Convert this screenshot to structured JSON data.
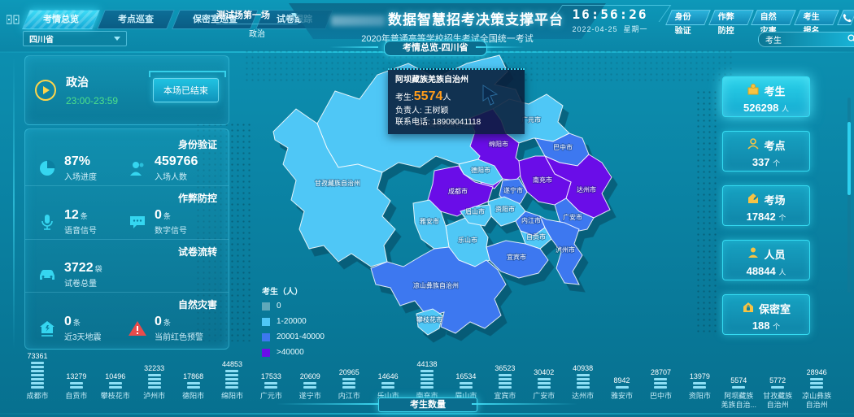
{
  "header": {
    "tabs": [
      {
        "label": "考情总览",
        "active": true
      },
      {
        "label": "考点巡查",
        "active": false
      },
      {
        "label": "保密室巡查",
        "active": false
      },
      {
        "label": "试卷跟踪",
        "active": false
      }
    ],
    "session_select": {
      "value": "测试场第一场",
      "subject": "政治"
    },
    "title": "数据智慧招考决策支撑平台",
    "subtitle": "2020年普通高等学校招生考试全国统一考试",
    "breadcrumb": "考情总览-四川省",
    "clock": {
      "time": "16:56:26",
      "date": "2022-04-25",
      "weekday": "星期一"
    },
    "actions": [
      "身份验证",
      "作弊防控",
      "自然灾害",
      "考生报名"
    ],
    "search": {
      "value": "考生"
    }
  },
  "filters": {
    "province": "四川省"
  },
  "left_panel": {
    "session": {
      "subject": "政治",
      "time_range": "23:00-23:59",
      "status_button": "本场已结束"
    },
    "sections": [
      {
        "title": "身份验证",
        "stats": [
          {
            "icon": "pie-chart-icon",
            "value": "87%",
            "unit": "",
            "label": "入场进度"
          },
          {
            "icon": "person-icon",
            "value": "459766",
            "unit": "",
            "label": "入场人数"
          }
        ]
      },
      {
        "title": "作弊防控",
        "stats": [
          {
            "icon": "microphone-icon",
            "value": "12",
            "unit": "条",
            "label": "语音信号"
          },
          {
            "icon": "chat-icon",
            "value": "0",
            "unit": "条",
            "label": "数字信号"
          }
        ]
      },
      {
        "title": "试卷流转",
        "stats": [
          {
            "icon": "car-icon",
            "value": "3722",
            "unit": "袋",
            "label": "试卷总量"
          }
        ]
      },
      {
        "title": "自然灾害",
        "stats": [
          {
            "icon": "earthquake-icon",
            "value": "0",
            "unit": "条",
            "label": "近3天地震"
          },
          {
            "icon": "alert-icon",
            "value": "0",
            "unit": "条",
            "label": "当前红色预警"
          }
        ]
      }
    ]
  },
  "map": {
    "tooltip": {
      "region": "阿坝藏族羌族自治州",
      "stat_label": "考生:",
      "stat_value": "5574",
      "stat_unit": "人",
      "manager": "负责人: 王树颖",
      "phone": "联系电话: 18909041118"
    },
    "legend": {
      "title": "考生（人）",
      "items": [
        {
          "label": "0",
          "color": "#5fa8ba"
        },
        {
          "label": "1-20000",
          "color": "#4fc7f6"
        },
        {
          "label": "20001-40000",
          "color": "#3d78f0"
        },
        {
          "label": ">40000",
          "color": "#6a0de8"
        }
      ]
    },
    "regions": [
      {
        "name": "阿坝藏族羌族自治州",
        "band": "1-20000"
      },
      {
        "name": "甘孜藏族自治州",
        "band": "1-20000"
      },
      {
        "name": "广元市",
        "band": "1-20000"
      },
      {
        "name": "绵阳市",
        "band": ">40000"
      },
      {
        "name": "巴中市",
        "band": "20001-40000"
      },
      {
        "name": "达州市",
        "band": ">40000"
      },
      {
        "name": "南充市",
        "band": ">40000"
      },
      {
        "name": "广安市",
        "band": "20001-40000"
      },
      {
        "name": "遂宁市",
        "band": "20001-40000"
      },
      {
        "name": "德阳市",
        "band": "1-20000"
      },
      {
        "name": "成都市",
        "band": ">40000"
      },
      {
        "name": "资阳市",
        "band": "1-20000"
      },
      {
        "name": "内江市",
        "band": "20001-40000"
      },
      {
        "name": "自贡市",
        "band": "1-20000"
      },
      {
        "name": "泸州市",
        "band": "20001-40000"
      },
      {
        "name": "宜宾市",
        "band": "20001-40000"
      },
      {
        "name": "乐山市",
        "band": "1-20000"
      },
      {
        "name": "眉山市",
        "band": "1-20000"
      },
      {
        "name": "雅安市",
        "band": "1-20000"
      },
      {
        "name": "凉山彝族自治州",
        "band": "20001-40000"
      },
      {
        "name": "攀枝花市",
        "band": "1-20000"
      }
    ]
  },
  "right_panel": {
    "cards": [
      {
        "icon": "candidate-icon",
        "label": "考生",
        "value": "526298",
        "unit": "人",
        "active": true
      },
      {
        "icon": "site-icon",
        "label": "考点",
        "value": "337",
        "unit": "个",
        "active": false
      },
      {
        "icon": "room-icon",
        "label": "考场",
        "value": "17842",
        "unit": "个",
        "active": false
      },
      {
        "icon": "staff-icon",
        "label": "人员",
        "value": "48844",
        "unit": "人",
        "active": false
      },
      {
        "icon": "secret-room-icon",
        "label": "保密室",
        "value": "188",
        "unit": "个",
        "active": false
      }
    ]
  },
  "chart_data": {
    "type": "bar",
    "title": "考生数量",
    "categories": [
      "成都市",
      "自贡市",
      "攀枝花市",
      "泸州市",
      "德阳市",
      "绵阳市",
      "广元市",
      "遂宁市",
      "内江市",
      "乐山市",
      "南充市",
      "眉山市",
      "宜宾市",
      "广安市",
      "达州市",
      "雅安市",
      "巴中市",
      "资阳市",
      "阿坝藏族羌族自治州",
      "甘孜藏族自治州",
      "凉山彝族自治州"
    ],
    "values": [
      73361,
      13279,
      10496,
      32233,
      17868,
      44853,
      17533,
      20609,
      20965,
      14646,
      44138,
      16534,
      36523,
      30402,
      40938,
      8942,
      28707,
      13979,
      5574,
      5772,
      28946
    ],
    "tick_lines": [
      [
        "成都市"
      ],
      [
        "自贡市"
      ],
      [
        "攀枝花市"
      ],
      [
        "泸州市"
      ],
      [
        "德阳市"
      ],
      [
        "绵阳市"
      ],
      [
        "广元市"
      ],
      [
        "遂宁市"
      ],
      [
        "内江市"
      ],
      [
        "乐山市"
      ],
      [
        "南充市"
      ],
      [
        "眉山市"
      ],
      [
        "宜宾市"
      ],
      [
        "广安市"
      ],
      [
        "达州市"
      ],
      [
        "雅安市"
      ],
      [
        "巴中市"
      ],
      [
        "资阳市"
      ],
      [
        "阿坝藏族",
        "羌族自治..."
      ],
      [
        "甘孜藏族",
        "自治州"
      ],
      [
        "凉山彝族",
        "自治州"
      ]
    ],
    "bar_color": "#8ddff5",
    "ylim": [
      0,
      80000
    ],
    "value_labels": true
  }
}
